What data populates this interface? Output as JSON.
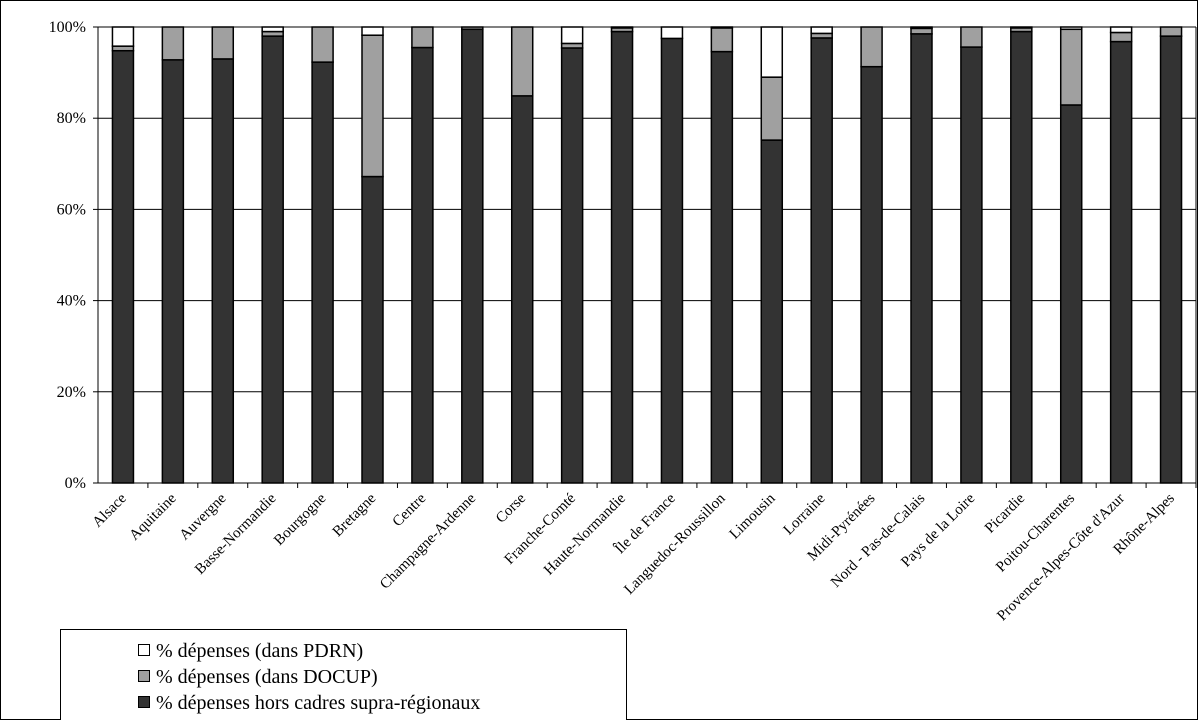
{
  "colors": {
    "pdrn": "#ffffff",
    "docup": "#a0a0a0",
    "hors_cadres": "#333333",
    "outline": "#000000",
    "grid": "#000000"
  },
  "chart_data": {
    "type": "bar",
    "stacked": true,
    "percent": true,
    "categories": [
      "Alsace",
      "Aquitaine",
      "Auvergne",
      "Basse-Normandie",
      "Bourgogne",
      "Bretagne",
      "Centre",
      "Champagne-Ardenne",
      "Corse",
      "Franche-Comté",
      "Haute-Normandie",
      "Île de France",
      "Languedoc-Roussillon",
      "Limousin",
      "Lorraine",
      "Midi-Pyrénées",
      "Nord - Pas-de-Calais",
      "Pays de la Loire",
      "Picardie",
      "Poitou-Charentes",
      "Provence-Alpes-Côte d'Azur",
      "Rhône-Alpes"
    ],
    "series": [
      {
        "name": "% dépenses hors cadres supra-régionaux",
        "color_key": "hors_cadres",
        "values": [
          94.8,
          92.8,
          93.0,
          98.0,
          92.3,
          67.2,
          95.5,
          99.5,
          84.9,
          95.4,
          99.0,
          97.5,
          94.6,
          75.2,
          97.6,
          91.3,
          98.5,
          95.6,
          99.0,
          82.9,
          96.8,
          98.0
        ]
      },
      {
        "name": "% dépenses (dans DOCUP)",
        "color_key": "docup",
        "values": [
          1.0,
          7.2,
          7.0,
          1.0,
          7.7,
          31.0,
          4.5,
          0.5,
          15.1,
          1.0,
          0.8,
          0,
          5.2,
          13.8,
          1.0,
          8.7,
          1.2,
          4.4,
          0.8,
          16.6,
          2.0,
          2.0
        ]
      },
      {
        "name": "% dépenses (dans PDRN)",
        "color_key": "pdrn",
        "values": [
          4.2,
          0,
          0,
          1.0,
          0,
          1.8,
          0,
          0,
          0,
          3.6,
          0.2,
          2.5,
          0.2,
          11.0,
          1.4,
          0,
          0.3,
          0,
          0.2,
          0.5,
          1.2,
          0
        ]
      }
    ],
    "ylim": [
      0,
      100
    ],
    "yticks": [
      "0%",
      "20%",
      "40%",
      "60%",
      "80%",
      "100%"
    ],
    "grid": true,
    "legend_position": "bottom-left"
  },
  "legend": {
    "items": [
      {
        "label": "% dépenses (dans PDRN)",
        "color_key": "pdrn"
      },
      {
        "label": "% dépenses (dans DOCUP)",
        "color_key": "docup"
      },
      {
        "label": "% dépenses hors cadres supra-régionaux",
        "color_key": "hors_cadres"
      }
    ]
  }
}
